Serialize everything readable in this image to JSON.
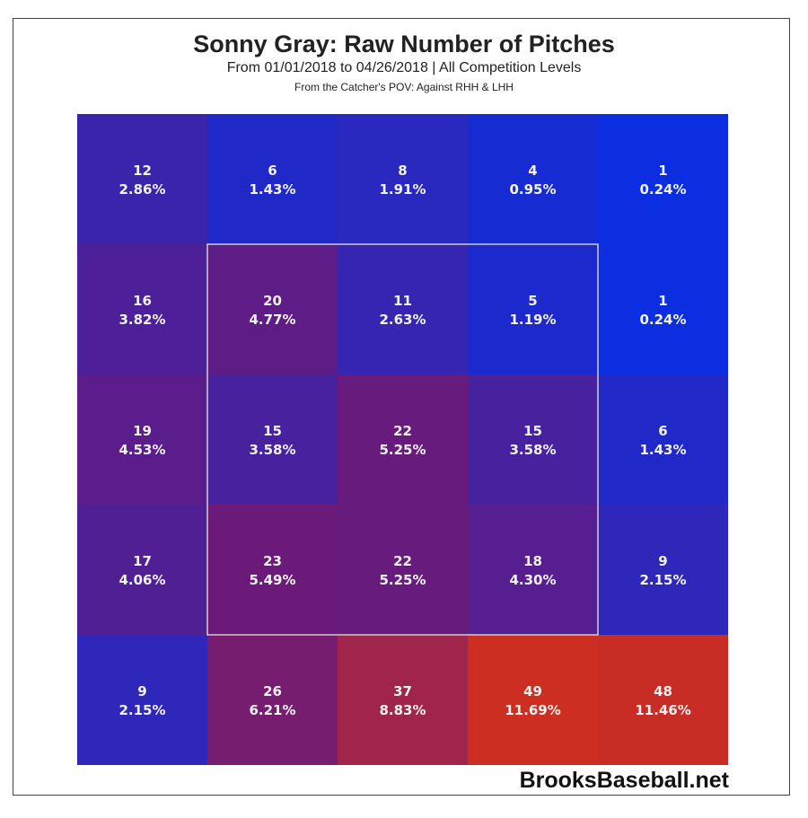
{
  "chart_data": {
    "type": "heatmap",
    "title": "Sonny Gray: Raw Number of Pitches",
    "subtitle": "From 01/01/2018 to 04/26/2018 | All Competition Levels",
    "subtitle2": "From the Catcher's POV:   Against RHH & LHH",
    "rows": 5,
    "cols": 5,
    "counts": [
      [
        12,
        6,
        8,
        4,
        1
      ],
      [
        16,
        20,
        11,
        5,
        1
      ],
      [
        19,
        15,
        22,
        15,
        6
      ],
      [
        17,
        23,
        22,
        18,
        9
      ],
      [
        9,
        26,
        37,
        49,
        48
      ]
    ],
    "percents": [
      [
        "2.86%",
        "1.43%",
        "1.91%",
        "0.95%",
        "0.24%"
      ],
      [
        "3.82%",
        "4.77%",
        "2.63%",
        "1.19%",
        "0.24%"
      ],
      [
        "4.53%",
        "3.58%",
        "5.25%",
        "3.58%",
        "1.43%"
      ],
      [
        "4.06%",
        "5.49%",
        "5.25%",
        "4.30%",
        "2.15%"
      ],
      [
        "2.15%",
        "6.21%",
        "8.83%",
        "11.69%",
        "11.46%"
      ]
    ],
    "strike_zone": "inner 3x3",
    "color_low": "#0a2ee0",
    "color_mid": "#6a1a7a",
    "color_high": "#cc2e22"
  },
  "brand": "BrooksBaseball.net"
}
